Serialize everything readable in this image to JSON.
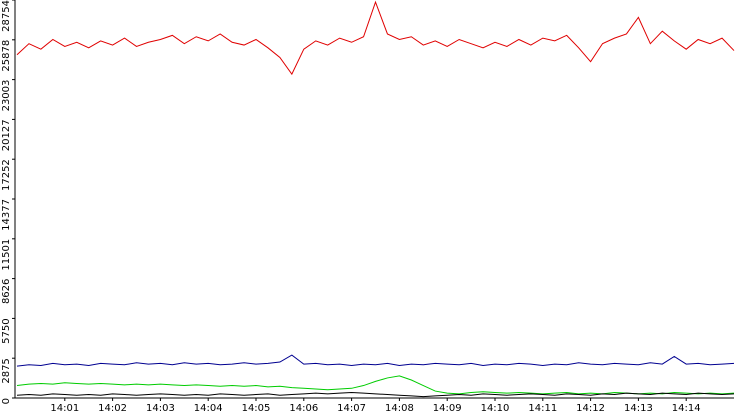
{
  "chart_data": {
    "type": "line",
    "x": [
      840,
      840.25,
      840.5,
      840.75,
      841,
      841.25,
      841.5,
      841.75,
      842,
      842.25,
      842.5,
      842.75,
      843,
      843.25,
      843.5,
      843.75,
      844,
      844.25,
      844.5,
      844.75,
      845,
      845.25,
      845.5,
      845.75,
      846,
      846.25,
      846.5,
      846.75,
      847,
      847.25,
      847.5,
      847.75,
      848,
      848.25,
      848.5,
      848.75,
      849,
      849.25,
      849.5,
      849.75,
      850,
      850.25,
      850.5,
      850.75,
      851,
      851.25,
      851.5,
      851.75,
      852,
      852.25,
      852.5,
      852.75,
      853,
      853.25,
      853.5,
      853.75,
      854,
      854.25,
      854.5,
      854.75,
      855
    ],
    "series": [
      {
        "color": "#e00000",
        "values": [
          24800,
          25600,
          25200,
          25900,
          25400,
          25700,
          25300,
          25800,
          25500,
          26000,
          25400,
          25700,
          25900,
          26200,
          25600,
          26100,
          25800,
          26300,
          25700,
          25500,
          25900,
          25300,
          24600,
          23400,
          25200,
          25800,
          25500,
          26000,
          25700,
          26100,
          28600,
          26300,
          25900,
          26100,
          25500,
          25800,
          25400,
          25900,
          25600,
          25300,
          25700,
          25400,
          25900,
          25500,
          26000,
          25800,
          26200,
          25300,
          24300,
          25600,
          26000,
          26300,
          27500,
          25600,
          26500,
          25800,
          25200,
          25900,
          25600,
          26000,
          25100
        ]
      },
      {
        "color": "#000090",
        "values": [
          2300,
          2400,
          2350,
          2500,
          2400,
          2450,
          2350,
          2500,
          2450,
          2400,
          2550,
          2450,
          2500,
          2400,
          2550,
          2450,
          2500,
          2400,
          2450,
          2550,
          2450,
          2500,
          2600,
          3100,
          2450,
          2500,
          2400,
          2450,
          2350,
          2450,
          2400,
          2500,
          2350,
          2450,
          2400,
          2500,
          2450,
          2400,
          2500,
          2350,
          2450,
          2400,
          2500,
          2450,
          2350,
          2450,
          2400,
          2550,
          2450,
          2400,
          2500,
          2450,
          2400,
          2550,
          2450,
          3000,
          2450,
          2500,
          2400,
          2450,
          2500
        ]
      },
      {
        "color": "#00cc00",
        "values": [
          900,
          1000,
          1050,
          1000,
          1100,
          1050,
          1000,
          1050,
          1000,
          950,
          1000,
          950,
          1000,
          950,
          900,
          950,
          900,
          850,
          900,
          850,
          900,
          800,
          850,
          750,
          700,
          650,
          600,
          650,
          700,
          900,
          1200,
          1450,
          1600,
          1300,
          900,
          500,
          350,
          300,
          400,
          450,
          400,
          350,
          400,
          350,
          300,
          350,
          400,
          300,
          350,
          300,
          400,
          350,
          300,
          350,
          300,
          400,
          350,
          300,
          350,
          300,
          350
        ]
      },
      {
        "color": "#000000",
        "values": [
          200,
          250,
          200,
          300,
          250,
          200,
          250,
          200,
          300,
          250,
          200,
          250,
          300,
          250,
          200,
          250,
          200,
          300,
          250,
          200,
          250,
          300,
          200,
          250,
          300,
          350,
          300,
          350,
          400,
          350,
          300,
          250,
          200,
          150,
          100,
          150,
          200,
          250,
          200,
          300,
          250,
          200,
          250,
          300,
          250,
          200,
          300,
          250,
          200,
          300,
          250,
          350,
          300,
          250,
          350,
          300,
          250,
          350,
          300,
          250,
          300
        ]
      }
    ],
    "xlim": [
      840,
      855
    ],
    "xticks": [
      {
        "value": 841,
        "label": "14:01"
      },
      {
        "value": 842,
        "label": "14:02"
      },
      {
        "value": 843,
        "label": "14:03"
      },
      {
        "value": 844,
        "label": "14:04"
      },
      {
        "value": 845,
        "label": "14:05"
      },
      {
        "value": 846,
        "label": "14:06"
      },
      {
        "value": 847,
        "label": "14:07"
      },
      {
        "value": 848,
        "label": "14:08"
      },
      {
        "value": 849,
        "label": "14:09"
      },
      {
        "value": 850,
        "label": "14:10"
      },
      {
        "value": 851,
        "label": "14:11"
      },
      {
        "value": 852,
        "label": "14:12"
      },
      {
        "value": 853,
        "label": "14:13"
      },
      {
        "value": 854,
        "label": "14:14"
      }
    ],
    "ylim": [
      0,
      28754
    ],
    "yticks": [
      0,
      2875,
      5750,
      8626,
      11501,
      14377,
      17252,
      20127,
      23003,
      25878,
      28754
    ],
    "grid": false
  }
}
